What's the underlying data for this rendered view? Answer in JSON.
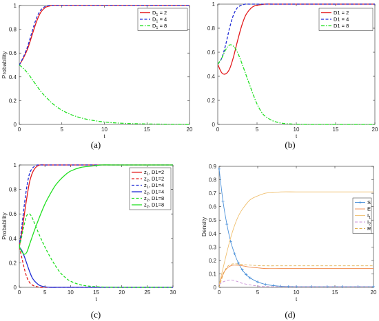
{
  "captions": [
    "(a)",
    "(b)",
    "(c)",
    "(d)"
  ],
  "chart_data": [
    {
      "type": "line",
      "caption": "(a)",
      "xlabel": "t",
      "ylabel": "Probability",
      "xlim": [
        0,
        20
      ],
      "ylim": [
        0,
        1
      ],
      "xticks": [
        0,
        5,
        10,
        15,
        20
      ],
      "yticks": [
        0,
        0.2,
        0.4,
        0.6,
        0.8,
        1
      ],
      "legend_position": "top-right",
      "series": [
        {
          "name": "D₁ = 2",
          "label_main": "D",
          "label_sub": "1",
          "label_rest": " = 2",
          "color": "#e31a1c",
          "dash": "solid",
          "x": [
            0,
            0.5,
            1,
            1.5,
            2,
            2.5,
            3,
            3.5,
            4,
            5,
            6,
            8,
            10,
            15,
            20
          ],
          "y": [
            0.5,
            0.56,
            0.64,
            0.75,
            0.86,
            0.94,
            0.98,
            0.995,
            1,
            1,
            1,
            1,
            1,
            1,
            1
          ]
        },
        {
          "name": "D₁ = 4",
          "label_main": "D",
          "label_sub": "1",
          "label_rest": " = 4",
          "color": "#1f2bd6",
          "dash": "dash",
          "x": [
            0,
            0.5,
            1,
            1.5,
            2,
            2.5,
            3,
            3.5,
            4,
            5,
            6,
            8,
            10,
            15,
            20
          ],
          "y": [
            0.5,
            0.57,
            0.66,
            0.78,
            0.89,
            0.96,
            0.99,
            1,
            1,
            1,
            1,
            1,
            1,
            1,
            1
          ]
        },
        {
          "name": "D₁ = 8",
          "label_main": "D",
          "label_sub": "1",
          "label_rest": " = 8",
          "color": "#22e022",
          "dash": "dashdot",
          "x": [
            0,
            0.5,
            1,
            1.5,
            2,
            2.5,
            3,
            4,
            5,
            6,
            7,
            8,
            9,
            10,
            12,
            15,
            20
          ],
          "y": [
            0.5,
            0.47,
            0.43,
            0.38,
            0.33,
            0.28,
            0.24,
            0.17,
            0.12,
            0.085,
            0.06,
            0.042,
            0.03,
            0.02,
            0.01,
            0.004,
            0
          ]
        }
      ]
    },
    {
      "type": "line",
      "caption": "(b)",
      "xlabel": "t",
      "ylabel": "",
      "xlim": [
        0,
        20
      ],
      "ylim": [
        0,
        1
      ],
      "xticks": [
        0,
        5,
        10,
        15,
        20
      ],
      "yticks": [
        0,
        0.2,
        0.4,
        0.6,
        0.8,
        1
      ],
      "legend_position": "top-right",
      "series": [
        {
          "name": "D1 = 2",
          "color": "#e31a1c",
          "dash": "solid",
          "x": [
            0,
            0.5,
            1,
            1.5,
            2,
            2.5,
            3,
            3.5,
            4,
            4.5,
            5,
            6,
            7,
            8,
            10,
            15,
            20
          ],
          "y": [
            0.5,
            0.43,
            0.42,
            0.46,
            0.56,
            0.69,
            0.81,
            0.9,
            0.95,
            0.98,
            0.99,
            1,
            1,
            1,
            1,
            1,
            1
          ]
        },
        {
          "name": "D1 = 4",
          "color": "#1f2bd6",
          "dash": "dash",
          "x": [
            0,
            0.5,
            1,
            1.5,
            2,
            2.5,
            3,
            3.5,
            4,
            5,
            6,
            8,
            10,
            15,
            20
          ],
          "y": [
            0.5,
            0.55,
            0.66,
            0.8,
            0.91,
            0.97,
            0.99,
            1,
            1,
            1,
            1,
            1,
            1,
            1,
            1
          ]
        },
        {
          "name": "D1 = 8",
          "color": "#22e022",
          "dash": "dashdot",
          "x": [
            0,
            0.5,
            1,
            1.5,
            2,
            2.5,
            3,
            3.5,
            4,
            4.5,
            5,
            5.5,
            6,
            7,
            8,
            9,
            10,
            12,
            15,
            20
          ],
          "y": [
            0.5,
            0.55,
            0.62,
            0.66,
            0.65,
            0.6,
            0.52,
            0.43,
            0.34,
            0.25,
            0.17,
            0.11,
            0.07,
            0.03,
            0.012,
            0.005,
            0.002,
            0,
            0,
            0
          ]
        }
      ]
    },
    {
      "type": "line",
      "caption": "(c)",
      "xlabel": "t",
      "ylabel": "Probability",
      "xlim": [
        0,
        30
      ],
      "ylim": [
        0,
        1
      ],
      "xticks": [
        0,
        5,
        10,
        15,
        20,
        25,
        30
      ],
      "yticks": [
        0,
        0.2,
        0.4,
        0.6,
        0.8,
        1
      ],
      "legend_position": "top-right",
      "series": [
        {
          "name": "z₁, D1=2",
          "label_main": "z",
          "label_sub": "1",
          "label_rest": ", D1=2",
          "color": "#e31a1c",
          "dash": "solid",
          "x": [
            0,
            0.5,
            1,
            1.5,
            2,
            2.5,
            3,
            3.5,
            4,
            5,
            6,
            8,
            10,
            15,
            20,
            25,
            30
          ],
          "y": [
            0.33,
            0.45,
            0.6,
            0.74,
            0.86,
            0.93,
            0.97,
            0.99,
            1,
            1,
            1,
            1,
            1,
            1,
            1,
            1,
            1
          ]
        },
        {
          "name": "z₂, D1=2",
          "label_main": "z",
          "label_sub": "2",
          "label_rest": ", D1=2",
          "color": "#e31a1c",
          "dash": "dash",
          "x": [
            0,
            0.5,
            1,
            1.5,
            2,
            2.5,
            3,
            3.5,
            4,
            5,
            6,
            8,
            10,
            15,
            20,
            25,
            30
          ],
          "y": [
            0.33,
            0.24,
            0.15,
            0.08,
            0.04,
            0.02,
            0.01,
            0.005,
            0,
            0,
            0,
            0,
            0,
            0,
            0,
            0,
            0
          ]
        },
        {
          "name": "z₁, D1=4",
          "label_main": "z",
          "label_sub": "1",
          "label_rest": ", D1=4",
          "color": "#1f2bd6",
          "dash": "dash",
          "x": [
            0,
            0.5,
            1,
            1.5,
            2,
            2.5,
            3,
            3.5,
            4,
            5,
            6,
            8,
            10,
            15,
            20,
            25,
            30
          ],
          "y": [
            0.33,
            0.5,
            0.68,
            0.83,
            0.93,
            0.97,
            0.99,
            1,
            1,
            1,
            1,
            1,
            1,
            1,
            1,
            1,
            1
          ]
        },
        {
          "name": "z₂, D1=4",
          "label_main": "z",
          "label_sub": "2",
          "label_rest": ", D1=4",
          "color": "#1f2bd6",
          "dash": "solid",
          "x": [
            0,
            0.5,
            1,
            1.5,
            2,
            2.5,
            3,
            3.5,
            4,
            5,
            6,
            8,
            10,
            15,
            20,
            25,
            30
          ],
          "y": [
            0.33,
            0.3,
            0.25,
            0.19,
            0.13,
            0.08,
            0.05,
            0.03,
            0.015,
            0.004,
            0,
            0,
            0,
            0,
            0,
            0,
            0
          ]
        },
        {
          "name": "z₂, D1=8",
          "label_main": "z",
          "label_sub": "2",
          "label_rest": ", D1=8",
          "color": "#22e022",
          "dash": "dash",
          "x": [
            0,
            0.5,
            1,
            1.5,
            2,
            2.5,
            3,
            4,
            5,
            6,
            7,
            8,
            9,
            10,
            12,
            14,
            16,
            18,
            20,
            25,
            30
          ],
          "y": [
            0.33,
            0.42,
            0.52,
            0.59,
            0.6,
            0.57,
            0.52,
            0.42,
            0.33,
            0.25,
            0.18,
            0.12,
            0.08,
            0.05,
            0.02,
            0.008,
            0.003,
            0.001,
            0,
            0,
            0
          ]
        },
        {
          "name": "z₂, D1=8",
          "label_main": "z",
          "label_sub": "2",
          "label_rest": ", D1=8",
          "color": "#22e022",
          "dash": "solid",
          "x": [
            0,
            0.5,
            1,
            1.5,
            2,
            3,
            4,
            5,
            6,
            7,
            8,
            9,
            10,
            12,
            14,
            16,
            18,
            20,
            25,
            30
          ],
          "y": [
            0.33,
            0.29,
            0.27,
            0.29,
            0.35,
            0.47,
            0.58,
            0.68,
            0.76,
            0.83,
            0.88,
            0.92,
            0.95,
            0.98,
            0.99,
            1,
            1,
            1,
            1,
            1
          ]
        }
      ]
    },
    {
      "type": "line",
      "caption": "(d)",
      "xlabel": "t",
      "ylabel": "Density",
      "xlim": [
        0,
        20
      ],
      "ylim": [
        0,
        0.9
      ],
      "xticks": [
        0,
        5,
        10,
        15,
        20
      ],
      "yticks": [
        0,
        0.1,
        0.2,
        0.3,
        0.4,
        0.5,
        0.6,
        0.7,
        0.8,
        0.9
      ],
      "legend_position": "right",
      "series": [
        {
          "name": "S",
          "label_main": "S",
          "label_sub": "",
          "label_rest": "",
          "color": "#4a90d9",
          "dash": "solid",
          "marker": "plus",
          "x": [
            0,
            0.5,
            1,
            1.5,
            2,
            2.5,
            3,
            3.5,
            4,
            5,
            6,
            7,
            8,
            9,
            10,
            12,
            14,
            16,
            18,
            20
          ],
          "y": [
            0.88,
            0.64,
            0.47,
            0.34,
            0.25,
            0.18,
            0.13,
            0.095,
            0.07,
            0.04,
            0.022,
            0.013,
            0.008,
            0.006,
            0.005,
            0.005,
            0.005,
            0.005,
            0.005,
            0.005
          ]
        },
        {
          "name": "E",
          "label_main": "E",
          "label_sub": "",
          "label_rest": "",
          "color": "#f08a4b",
          "dash": "solid",
          "x": [
            0,
            0.5,
            1,
            1.5,
            2,
            3,
            4,
            5,
            6,
            8,
            10,
            12,
            15,
            20
          ],
          "y": [
            0.02,
            0.1,
            0.14,
            0.16,
            0.165,
            0.16,
            0.15,
            0.145,
            0.14,
            0.14,
            0.14,
            0.14,
            0.14,
            0.14
          ]
        },
        {
          "name": "I₁",
          "label_main": "I",
          "label_sub": "1",
          "label_rest": "",
          "color": "#f0c070",
          "dash": "solid",
          "x": [
            0,
            0.5,
            1,
            1.5,
            2,
            2.5,
            3,
            4,
            5,
            6,
            7,
            8,
            10,
            12,
            15,
            20
          ],
          "y": [
            0.02,
            0.14,
            0.26,
            0.37,
            0.46,
            0.53,
            0.58,
            0.65,
            0.68,
            0.7,
            0.705,
            0.71,
            0.71,
            0.71,
            0.71,
            0.71
          ]
        },
        {
          "name": "I₂",
          "label_main": "I",
          "label_sub": "2",
          "label_rest": "",
          "color": "#c98fd6",
          "dash": "dash",
          "x": [
            0,
            0.5,
            1,
            1.5,
            2,
            2.5,
            3,
            4,
            5,
            6,
            8,
            10,
            15,
            20
          ],
          "y": [
            0.02,
            0.04,
            0.05,
            0.055,
            0.05,
            0.04,
            0.03,
            0.018,
            0.01,
            0.006,
            0.004,
            0.004,
            0.004,
            0.004
          ]
        },
        {
          "name": "R",
          "label_main": "R",
          "label_sub": "",
          "label_rest": "",
          "color": "#e0b050",
          "dash": "dash",
          "x": [
            0,
            0.5,
            1,
            1.5,
            2,
            3,
            4,
            5,
            6,
            8,
            10,
            15,
            20
          ],
          "y": [
            0.0,
            0.09,
            0.15,
            0.17,
            0.175,
            0.17,
            0.165,
            0.162,
            0.16,
            0.16,
            0.16,
            0.16,
            0.16
          ]
        }
      ]
    }
  ]
}
